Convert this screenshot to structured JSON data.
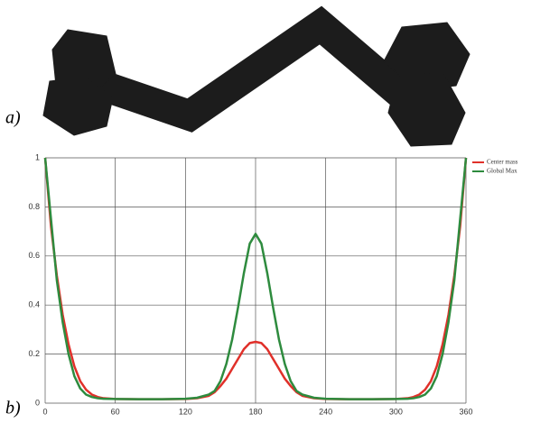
{
  "panel_labels": [
    "a)",
    "b)"
  ],
  "chart_data": {
    "type": "line",
    "x": [
      0,
      5,
      10,
      15,
      20,
      25,
      30,
      35,
      40,
      45,
      50,
      60,
      80,
      100,
      120,
      130,
      140,
      145,
      150,
      155,
      160,
      165,
      170,
      175,
      180,
      185,
      190,
      195,
      200,
      205,
      210,
      215,
      220,
      230,
      240,
      260,
      280,
      300,
      310,
      315,
      320,
      325,
      330,
      335,
      340,
      345,
      350,
      355,
      360
    ],
    "series": [
      {
        "name": "Center mass",
        "color": "#e0302a",
        "values": [
          1,
          0.72,
          0.52,
          0.36,
          0.24,
          0.15,
          0.09,
          0.055,
          0.035,
          0.025,
          0.02,
          0.017,
          0.016,
          0.016,
          0.017,
          0.02,
          0.03,
          0.045,
          0.07,
          0.1,
          0.14,
          0.18,
          0.22,
          0.245,
          0.25,
          0.245,
          0.22,
          0.18,
          0.14,
          0.1,
          0.07,
          0.045,
          0.03,
          0.02,
          0.017,
          0.016,
          0.016,
          0.017,
          0.02,
          0.025,
          0.035,
          0.055,
          0.09,
          0.15,
          0.24,
          0.36,
          0.52,
          0.72,
          1
        ]
      },
      {
        "name": "Global Max",
        "color": "#2e8b3e",
        "values": [
          1,
          0.75,
          0.5,
          0.33,
          0.2,
          0.11,
          0.06,
          0.035,
          0.025,
          0.02,
          0.018,
          0.017,
          0.016,
          0.016,
          0.018,
          0.022,
          0.035,
          0.05,
          0.09,
          0.16,
          0.26,
          0.39,
          0.53,
          0.65,
          0.69,
          0.65,
          0.53,
          0.39,
          0.26,
          0.16,
          0.09,
          0.05,
          0.035,
          0.022,
          0.018,
          0.016,
          0.016,
          0.017,
          0.018,
          0.02,
          0.025,
          0.035,
          0.06,
          0.11,
          0.2,
          0.33,
          0.5,
          0.75,
          1
        ]
      }
    ],
    "xlim": [
      0,
      360
    ],
    "xticks": [
      0,
      60,
      120,
      180,
      240,
      300,
      360
    ],
    "ylim": [
      0,
      1
    ],
    "yticks": [
      0,
      0.2,
      0.4,
      0.6,
      0.8,
      1
    ],
    "grid": true,
    "legend": "top-right"
  }
}
